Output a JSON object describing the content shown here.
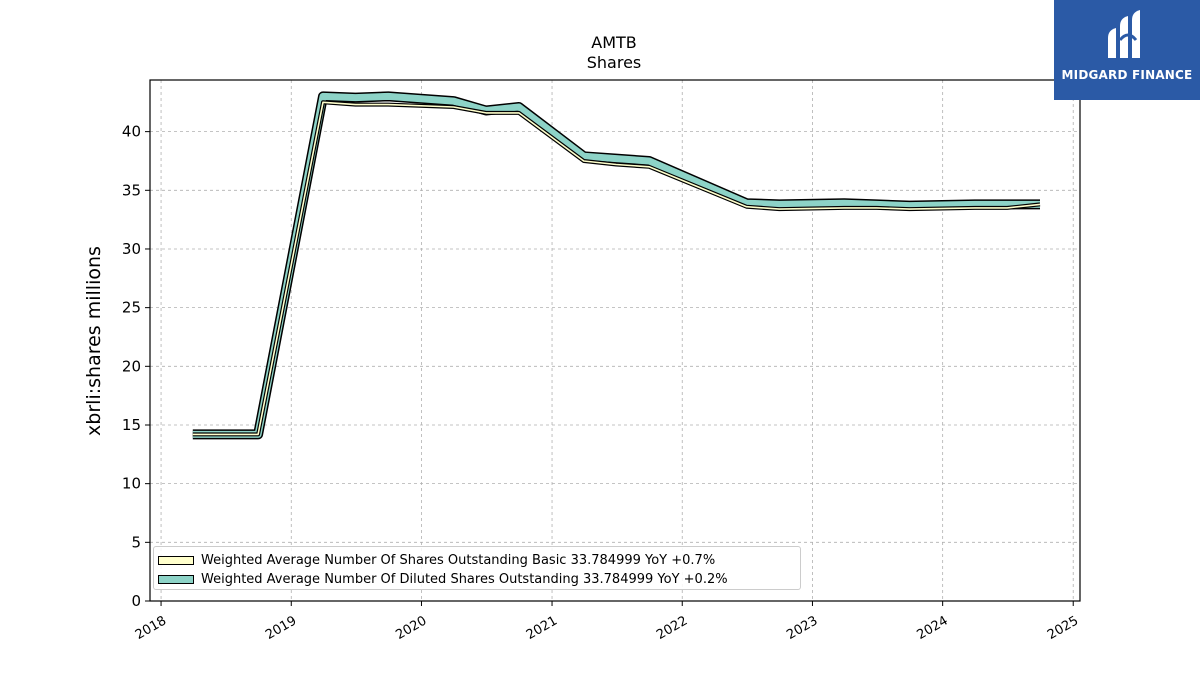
{
  "chart_data": {
    "type": "area",
    "title": "AMTB",
    "subtitle": "Shares",
    "ylabel": "xbrli:shares millions",
    "xlabel": "",
    "ylim": [
      0,
      44.4
    ],
    "xlim": [
      "2017-12-01",
      "2025-01-20"
    ],
    "yticks": [
      0,
      5,
      10,
      15,
      20,
      25,
      30,
      35,
      40
    ],
    "xticks": [
      "2018",
      "2019",
      "2020",
      "2021",
      "2022",
      "2023",
      "2024",
      "2025"
    ],
    "grid": true,
    "legend_position": "lower-left",
    "series": [
      {
        "name": "Weighted Average Number Of Shares Outstanding Basic  33.784999 YoY +0.7%",
        "color": "#ffffcc",
        "points": [
          [
            "2018-03-31",
            14.2
          ],
          [
            "2018-06-30",
            14.2
          ],
          [
            "2018-09-30",
            14.2
          ],
          [
            "2019-03-31",
            42.5
          ],
          [
            "2019-06-30",
            42.3
          ],
          [
            "2019-09-30",
            42.3
          ],
          [
            "2020-03-31",
            42.1
          ],
          [
            "2020-06-30",
            41.6
          ],
          [
            "2020-09-30",
            41.6
          ],
          [
            "2021-03-31",
            37.5
          ],
          [
            "2021-06-30",
            37.2
          ],
          [
            "2021-09-30",
            37.0
          ],
          [
            "2022-06-30",
            33.6
          ],
          [
            "2022-09-30",
            33.4
          ],
          [
            "2023-03-31",
            33.5
          ],
          [
            "2023-06-30",
            33.5
          ],
          [
            "2023-09-30",
            33.4
          ],
          [
            "2024-03-31",
            33.5
          ],
          [
            "2024-06-30",
            33.5
          ],
          [
            "2024-09-30",
            33.8
          ]
        ]
      },
      {
        "name": "Weighted Average Number Of Diluted Shares Outstanding  33.784999 YoY +0.2%",
        "color": "#8dd3c7",
        "points": [
          [
            "2018-03-31",
            14.2
          ],
          [
            "2018-06-30",
            14.2
          ],
          [
            "2018-09-30",
            14.2
          ],
          [
            "2019-03-31",
            43.0
          ],
          [
            "2019-06-30",
            42.9
          ],
          [
            "2019-09-30",
            43.0
          ],
          [
            "2020-03-31",
            42.6
          ],
          [
            "2020-06-30",
            41.8
          ],
          [
            "2020-09-30",
            42.1
          ],
          [
            "2021-03-31",
            37.9
          ],
          [
            "2021-06-30",
            37.7
          ],
          [
            "2021-09-30",
            37.5
          ],
          [
            "2022-06-30",
            33.9
          ],
          [
            "2022-09-30",
            33.8
          ],
          [
            "2023-03-31",
            33.9
          ],
          [
            "2023-06-30",
            33.8
          ],
          [
            "2023-09-30",
            33.7
          ],
          [
            "2024-03-31",
            33.8
          ],
          [
            "2024-06-30",
            33.8
          ],
          [
            "2024-09-30",
            33.8
          ]
        ]
      }
    ]
  },
  "logo": {
    "text": "MIDGARD FINANCE"
  }
}
